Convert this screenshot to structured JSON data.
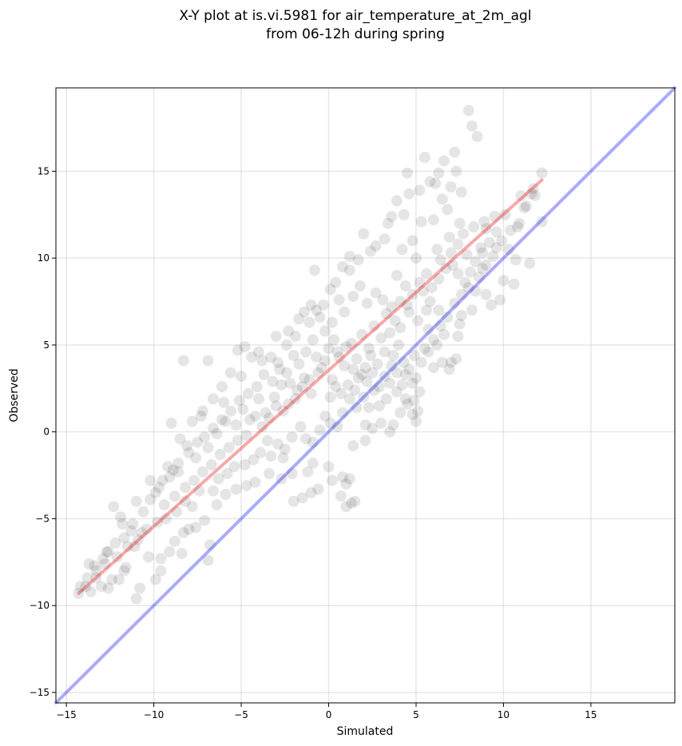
{
  "chart_data": {
    "type": "scatter",
    "title_line1": "X-Y plot at is.vi.5981 for air_temperature_at_2m_agl",
    "title_line2": "from 06-12h during spring",
    "xlabel": "Simulated",
    "ylabel": "Observed",
    "xlim": [
      -15.6,
      19.8
    ],
    "ylim": [
      -15.6,
      19.8
    ],
    "xticks": [
      -15,
      -10,
      -5,
      0,
      5,
      10,
      15
    ],
    "xtick_labels": [
      "−15",
      "−10",
      "−5",
      "0",
      "5",
      "10",
      "15"
    ],
    "yticks": [
      -15,
      -10,
      -5,
      0,
      5,
      10,
      15
    ],
    "ytick_labels": [
      "−15",
      "−10",
      "−5",
      "0",
      "5",
      "10",
      "15"
    ],
    "grid": true,
    "marker_color": "#000000",
    "marker_alpha": 0.1,
    "fit_line": {
      "x": [
        -14.3,
        12.2
      ],
      "y": [
        -9.3,
        14.5
      ],
      "color": "#e8282b"
    },
    "identity_line": {
      "x": [
        -15.6,
        19.8
      ],
      "y": [
        -15.6,
        19.8
      ],
      "color": "#2b2bff"
    },
    "points": [
      [
        8.0,
        18.5
      ],
      [
        8.2,
        17.6
      ],
      [
        8.5,
        17.0
      ],
      [
        12.2,
        14.9
      ],
      [
        11.6,
        13.7
      ],
      [
        11.8,
        13.6
      ],
      [
        11.0,
        13.6
      ],
      [
        11.2,
        12.9
      ],
      [
        12.2,
        12.1
      ],
      [
        8.9,
        12.1
      ],
      [
        9.0,
        11.7
      ],
      [
        8.3,
        11.8
      ],
      [
        9.6,
        11.5
      ],
      [
        10.8,
        11.8
      ],
      [
        9.6,
        10.6
      ],
      [
        11.5,
        9.7
      ],
      [
        8.7,
        10.6
      ],
      [
        8.8,
        9.4
      ],
      [
        8.6,
        8.9
      ],
      [
        10.0,
        8.7
      ],
      [
        10.6,
        8.5
      ],
      [
        9.0,
        7.9
      ],
      [
        9.3,
        7.3
      ],
      [
        9.8,
        7.6
      ],
      [
        8.2,
        7.0
      ],
      [
        7.6,
        6.7
      ],
      [
        7.5,
        6.2
      ],
      [
        7.4,
        5.5
      ],
      [
        7.0,
        4.0
      ],
      [
        6.9,
        3.6
      ],
      [
        7.3,
        4.2
      ],
      [
        6.5,
        4.0
      ],
      [
        6.0,
        3.7
      ],
      [
        5.1,
        1.2
      ],
      [
        5.0,
        0.6
      ],
      [
        4.8,
        1.0
      ],
      [
        4.5,
        1.6
      ],
      [
        4.1,
        1.1
      ],
      [
        3.7,
        0.4
      ],
      [
        3.5,
        0.0
      ],
      [
        3.0,
        0.5
      ],
      [
        2.5,
        0.2
      ],
      [
        2.1,
        0.4
      ],
      [
        2.1,
        -0.5
      ],
      [
        1.4,
        -0.8
      ],
      [
        1.2,
        -2.7
      ],
      [
        1.3,
        -4.1
      ],
      [
        1.5,
        -4.0
      ],
      [
        1.0,
        -3.0
      ],
      [
        0.7,
        -3.7
      ],
      [
        1.0,
        -4.3
      ],
      [
        0.8,
        -2.6
      ],
      [
        0.2,
        -2.8
      ],
      [
        0.0,
        -2.0
      ],
      [
        -0.6,
        -3.3
      ],
      [
        -0.9,
        -1.8
      ],
      [
        -1.2,
        -2.3
      ],
      [
        -1.0,
        -3.5
      ],
      [
        -1.5,
        -3.8
      ],
      [
        -2.0,
        -4.0
      ],
      [
        -2.1,
        -2.4
      ],
      [
        -2.7,
        -2.7
      ],
      [
        -2.6,
        -1.5
      ],
      [
        -3.3,
        -1.4
      ],
      [
        -3.4,
        -2.4
      ],
      [
        -4.2,
        -2.9
      ],
      [
        -4.7,
        -3.1
      ],
      [
        -5.3,
        -3.3
      ],
      [
        -5.9,
        -3.6
      ],
      [
        -6.4,
        -4.2
      ],
      [
        -6.8,
        -6.5
      ],
      [
        -6.9,
        -7.4
      ],
      [
        -7.1,
        -5.1
      ],
      [
        -7.6,
        -5.5
      ],
      [
        -8.0,
        -5.6
      ],
      [
        -8.3,
        -5.8
      ],
      [
        -8.4,
        -7.0
      ],
      [
        -8.8,
        -6.3
      ],
      [
        -9.1,
        -6.9
      ],
      [
        -9.6,
        -8.0
      ],
      [
        -9.6,
        -7.3
      ],
      [
        -9.9,
        -8.5
      ],
      [
        -10.3,
        -7.2
      ],
      [
        -10.8,
        -9.0
      ],
      [
        -11.0,
        -9.6
      ],
      [
        -11.1,
        -6.6
      ],
      [
        -11.6,
        -7.8
      ],
      [
        -11.7,
        -8.0
      ],
      [
        -12.0,
        -8.5
      ],
      [
        -12.4,
        -8.5
      ],
      [
        -12.6,
        -9.0
      ],
      [
        -13.0,
        -8.9
      ],
      [
        -13.3,
        -8.4
      ],
      [
        -13.6,
        -9.2
      ],
      [
        -13.9,
        -8.9
      ],
      [
        -14.2,
        -8.9
      ],
      [
        -13.7,
        -7.6
      ],
      [
        -13.4,
        -7.7
      ],
      [
        -12.9,
        -7.3
      ],
      [
        -12.6,
        -6.9
      ],
      [
        -12.3,
        -4.3
      ],
      [
        -11.9,
        -4.9
      ],
      [
        -11.8,
        -5.3
      ],
      [
        -11.3,
        -5.7
      ],
      [
        -11.0,
        -4.0
      ],
      [
        -10.7,
        -5.8
      ],
      [
        -10.2,
        -2.8
      ],
      [
        -9.9,
        -3.5
      ],
      [
        -9.5,
        -2.8
      ],
      [
        -9.2,
        -2.0
      ],
      [
        -8.9,
        -2.2
      ],
      [
        -8.6,
        -2.3
      ],
      [
        -8.5,
        -0.4
      ],
      [
        -8.1,
        -0.8
      ],
      [
        -9.0,
        0.5
      ],
      [
        -7.8,
        0.6
      ],
      [
        -7.3,
        0.9
      ],
      [
        -7.2,
        1.2
      ],
      [
        -8.3,
        4.1
      ],
      [
        -6.9,
        4.1
      ],
      [
        -6.6,
        1.9
      ],
      [
        -6.0,
        1.7
      ],
      [
        -6.1,
        2.6
      ],
      [
        -5.6,
        3.4
      ],
      [
        -5.0,
        3.2
      ],
      [
        -5.2,
        4.7
      ],
      [
        -4.8,
        4.9
      ],
      [
        -4.4,
        4.3
      ],
      [
        -4.0,
        4.6
      ],
      [
        -3.8,
        4.1
      ],
      [
        -3.3,
        4.3
      ],
      [
        -2.9,
        4.0
      ],
      [
        -3.0,
        5.5
      ],
      [
        -2.4,
        5.0
      ],
      [
        -2.3,
        5.8
      ],
      [
        -1.9,
        5.5
      ],
      [
        -1.7,
        6.5
      ],
      [
        -1.4,
        6.9
      ],
      [
        -1.0,
        7.3
      ],
      [
        -1.1,
        6.3
      ],
      [
        -0.7,
        7.0
      ],
      [
        -0.3,
        7.3
      ],
      [
        -0.8,
        9.3
      ],
      [
        0.1,
        8.2
      ],
      [
        0.4,
        8.6
      ],
      [
        0.8,
        9.5
      ],
      [
        1.2,
        9.3
      ],
      [
        1.2,
        10.1
      ],
      [
        1.7,
        9.9
      ],
      [
        2.0,
        11.4
      ],
      [
        2.4,
        10.4
      ],
      [
        2.7,
        10.7
      ],
      [
        3.2,
        11.1
      ],
      [
        3.4,
        12.0
      ],
      [
        3.6,
        12.4
      ],
      [
        3.9,
        13.3
      ],
      [
        4.3,
        12.5
      ],
      [
        4.6,
        13.7
      ],
      [
        4.5,
        14.9
      ],
      [
        5.2,
        13.9
      ],
      [
        5.5,
        15.8
      ],
      [
        5.8,
        14.4
      ],
      [
        6.1,
        14.3
      ],
      [
        6.3,
        14.9
      ],
      [
        6.6,
        15.6
      ],
      [
        6.5,
        13.4
      ],
      [
        7.2,
        16.1
      ],
      [
        7.3,
        15.0
      ],
      [
        7.6,
        13.8
      ],
      [
        7.0,
        14.1
      ],
      [
        6.8,
        12.8
      ],
      [
        7.5,
        12.0
      ],
      [
        7.7,
        11.4
      ],
      [
        7.9,
        10.2
      ],
      [
        6.9,
        11.2
      ],
      [
        6.0,
        12.2
      ],
      [
        5.3,
        12.1
      ],
      [
        4.8,
        11.0
      ],
      [
        6.2,
        10.5
      ],
      [
        6.4,
        9.9
      ],
      [
        7.1,
        9.6
      ],
      [
        7.4,
        9.1
      ],
      [
        5.6,
        9.1
      ],
      [
        5.0,
        10.0
      ],
      [
        4.2,
        10.5
      ],
      [
        3.9,
        9.0
      ],
      [
        4.4,
        8.4
      ],
      [
        5.4,
        8.1
      ],
      [
        5.8,
        7.5
      ],
      [
        6.3,
        7.0
      ],
      [
        4.1,
        7.5
      ],
      [
        4.6,
        6.9
      ],
      [
        5.1,
        6.4
      ],
      [
        5.7,
        5.9
      ],
      [
        6.6,
        5.6
      ],
      [
        6.2,
        5.0
      ],
      [
        5.5,
        4.8
      ],
      [
        4.9,
        4.4
      ],
      [
        4.3,
        4.0
      ],
      [
        4.0,
        5.0
      ],
      [
        3.7,
        4.4
      ],
      [
        4.4,
        3.3
      ],
      [
        4.8,
        2.8
      ],
      [
        5.2,
        2.3
      ],
      [
        4.9,
        1.8
      ],
      [
        4.4,
        1.9
      ],
      [
        3.9,
        2.3
      ],
      [
        3.5,
        2.8
      ],
      [
        3.3,
        1.9
      ],
      [
        2.9,
        1.5
      ],
      [
        2.6,
        2.4
      ],
      [
        2.3,
        1.4
      ],
      [
        2.0,
        2.0
      ],
      [
        1.6,
        1.4
      ],
      [
        1.2,
        1.9
      ],
      [
        0.8,
        1.1
      ],
      [
        0.5,
        0.3
      ],
      [
        0.1,
        0.5
      ],
      [
        -0.2,
        0.9
      ],
      [
        -0.5,
        0.1
      ],
      [
        -0.9,
        -0.6
      ],
      [
        -1.3,
        -0.4
      ],
      [
        -1.6,
        0.3
      ],
      [
        -2.1,
        -0.3
      ],
      [
        -2.5,
        -1.0
      ],
      [
        -2.9,
        -0.7
      ],
      [
        -3.5,
        -0.5
      ],
      [
        -3.9,
        -1.2
      ],
      [
        -4.3,
        -1.6
      ],
      [
        -4.8,
        -1.9
      ],
      [
        -5.4,
        -2.0
      ],
      [
        -5.8,
        -2.4
      ],
      [
        -6.3,
        -2.7
      ],
      [
        -6.6,
        -3.4
      ],
      [
        -7.4,
        -3.4
      ],
      [
        -7.8,
        -4.3
      ],
      [
        -8.2,
        -4.0
      ],
      [
        -8.7,
        -4.6
      ],
      [
        -9.3,
        -5.0
      ],
      [
        -9.8,
        -5.2
      ],
      [
        -10.4,
        -5.6
      ],
      [
        -10.9,
        -6.2
      ],
      [
        -11.5,
        -6.6
      ],
      [
        -12.1,
        -7.2
      ],
      [
        -12.8,
        -7.6
      ],
      [
        -13.3,
        -8.0
      ],
      [
        -13.8,
        -8.4
      ],
      [
        -14.3,
        -9.3
      ],
      [
        -7.6,
        -1.5
      ],
      [
        -6.9,
        -0.9
      ],
      [
        -6.4,
        -0.1
      ],
      [
        -5.9,
        0.6
      ],
      [
        -5.3,
        0.4
      ],
      [
        -4.9,
        1.3
      ],
      [
        -4.5,
        0.7
      ],
      [
        -4.0,
        1.9
      ],
      [
        -3.6,
        1.1
      ],
      [
        -3.1,
        2.0
      ],
      [
        -2.7,
        2.7
      ],
      [
        -2.3,
        1.6
      ],
      [
        -1.8,
        2.4
      ],
      [
        -1.4,
        3.1
      ],
      [
        -1.0,
        2.2
      ],
      [
        -0.6,
        3.4
      ],
      [
        -0.2,
        4.1
      ],
      [
        0.2,
        3.0
      ],
      [
        0.5,
        4.6
      ],
      [
        0.9,
        3.8
      ],
      [
        1.3,
        5.1
      ],
      [
        1.6,
        4.2
      ],
      [
        1.9,
        5.6
      ],
      [
        2.3,
        4.8
      ],
      [
        2.6,
        6.1
      ],
      [
        3.0,
        5.4
      ],
      [
        3.3,
        6.8
      ],
      [
        3.6,
        7.2
      ],
      [
        3.1,
        7.6
      ],
      [
        2.7,
        8.0
      ],
      [
        2.2,
        7.4
      ],
      [
        1.8,
        8.4
      ],
      [
        1.4,
        7.8
      ],
      [
        0.9,
        6.9
      ],
      [
        0.6,
        7.6
      ],
      [
        0.2,
        6.3
      ],
      [
        -0.2,
        5.8
      ],
      [
        -0.5,
        6.6
      ],
      [
        -0.9,
        5.3
      ],
      [
        -1.3,
        4.6
      ],
      [
        -1.7,
        3.9
      ],
      [
        -2.0,
        4.4
      ],
      [
        -2.4,
        3.4
      ],
      [
        -2.8,
        3.6
      ],
      [
        -3.2,
        2.9
      ],
      [
        -3.7,
        3.3
      ],
      [
        -4.1,
        2.6
      ],
      [
        -4.6,
        2.2
      ],
      [
        -5.1,
        1.8
      ],
      [
        -5.6,
        1.2
      ],
      [
        -6.1,
        0.7
      ],
      [
        -6.6,
        0.2
      ],
      [
        -7.1,
        -0.3
      ],
      [
        -7.5,
        -0.6
      ],
      [
        -8.0,
        -1.2
      ],
      [
        -8.6,
        -1.8
      ],
      [
        -9.1,
        -2.6
      ],
      [
        -9.7,
        -3.2
      ],
      [
        -10.2,
        -3.9
      ],
      [
        -10.6,
        -4.6
      ],
      [
        -11.2,
        -5.3
      ],
      [
        -11.7,
        -6.1
      ],
      [
        -12.2,
        -6.4
      ],
      [
        -12.7,
        -6.9
      ],
      [
        0.0,
        4.8
      ],
      [
        0.3,
        5.3
      ],
      [
        0.6,
        4.3
      ],
      [
        1.0,
        4.9
      ],
      [
        1.4,
        3.6
      ],
      [
        1.7,
        3.1
      ],
      [
        2.1,
        3.7
      ],
      [
        2.4,
        4.4
      ],
      [
        2.8,
        3.9
      ],
      [
        3.2,
        4.6
      ],
      [
        3.5,
        5.7
      ],
      [
        3.8,
        6.4
      ],
      [
        4.1,
        6.0
      ],
      [
        4.5,
        7.3
      ],
      [
        4.8,
        7.9
      ],
      [
        5.2,
        8.6
      ],
      [
        5.6,
        7.0
      ],
      [
        5.9,
        8.3
      ],
      [
        6.3,
        8.8
      ],
      [
        6.7,
        9.4
      ],
      [
        7.0,
        10.3
      ],
      [
        7.4,
        10.8
      ],
      [
        7.8,
        8.6
      ],
      [
        8.1,
        9.2
      ],
      [
        8.4,
        8.1
      ],
      [
        8.8,
        10.3
      ],
      [
        9.2,
        10.9
      ],
      [
        9.5,
        12.4
      ],
      [
        10.1,
        12.5
      ],
      [
        10.4,
        11.6
      ],
      [
        10.9,
        12.0
      ],
      [
        11.3,
        13.0
      ],
      [
        11.7,
        14.0
      ],
      [
        -0.4,
        3.7
      ],
      [
        -0.7,
        4.3
      ],
      [
        -1.1,
        3.0
      ],
      [
        -1.5,
        2.6
      ],
      [
        -1.9,
        1.9
      ],
      [
        -2.2,
        2.8
      ],
      [
        -2.6,
        1.2
      ],
      [
        -3.0,
        1.5
      ],
      [
        -3.4,
        0.8
      ],
      [
        -3.8,
        0.3
      ],
      [
        -4.2,
        0.9
      ],
      [
        -4.7,
        -0.2
      ],
      [
        -5.2,
        -0.5
      ],
      [
        -5.7,
        -0.9
      ],
      [
        -6.2,
        -1.3
      ],
      [
        -6.7,
        -1.9
      ],
      [
        -7.2,
        -2.3
      ],
      [
        -7.7,
        -2.8
      ],
      [
        -8.2,
        -3.2
      ],
      [
        -8.8,
        -3.7
      ],
      [
        -9.4,
        -4.2
      ],
      [
        0.1,
        2.0
      ],
      [
        0.4,
        2.6
      ],
      [
        0.7,
        2.2
      ],
      [
        1.1,
        2.7
      ],
      [
        1.5,
        2.4
      ],
      [
        1.9,
        3.3
      ],
      [
        2.2,
        2.9
      ],
      [
        2.5,
        3.4
      ],
      [
        2.9,
        2.6
      ],
      [
        3.2,
        3.2
      ],
      [
        3.6,
        3.8
      ],
      [
        3.9,
        3.4
      ],
      [
        4.2,
        2.7
      ],
      [
        4.6,
        3.6
      ],
      [
        5.0,
        3.1
      ],
      [
        5.3,
        4.0
      ],
      [
        5.7,
        4.6
      ],
      [
        6.0,
        5.3
      ],
      [
        6.4,
        6.1
      ],
      [
        6.8,
        6.6
      ],
      [
        7.2,
        7.4
      ],
      [
        7.6,
        7.9
      ],
      [
        8.0,
        8.3
      ],
      [
        8.4,
        9.8
      ],
      [
        9.0,
        9.6
      ],
      [
        9.4,
        10.1
      ],
      [
        9.9,
        11.0
      ],
      [
        10.3,
        10.5
      ],
      [
        10.7,
        9.9
      ]
    ]
  }
}
